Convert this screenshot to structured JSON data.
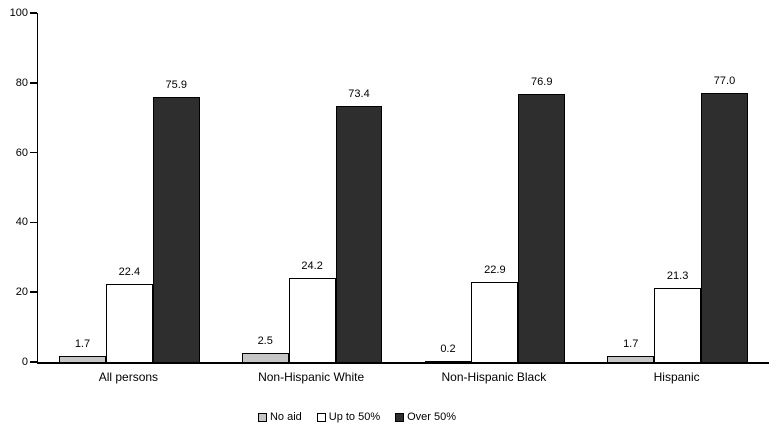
{
  "chart_data": {
    "type": "bar",
    "categories": [
      "All persons",
      "Non-Hispanic White",
      "Non-Hispanic Black",
      "Hispanic"
    ],
    "series": [
      {
        "name": "No aid",
        "color": "#c6c6c6",
        "values": [
          1.7,
          2.5,
          0.2,
          1.7
        ]
      },
      {
        "name": "Up to 50%",
        "color": "#ffffff",
        "values": [
          22.4,
          24.2,
          22.9,
          21.3
        ]
      },
      {
        "name": "Over 50%",
        "color": "#2e2e2e",
        "values": [
          75.9,
          73.4,
          76.9,
          77.0
        ]
      }
    ],
    "value_labels": [
      "1.7",
      "22.4",
      "75.9",
      "2.5",
      "24.2",
      "73.4",
      "0.2",
      "22.9",
      "76.9",
      "1.7",
      "21.3",
      "77.0"
    ],
    "y_ticks": [
      "0",
      "20",
      "40",
      "60",
      "80",
      "100"
    ],
    "ylim": [
      0,
      100
    ],
    "grid": false,
    "legend_position": "bottom",
    "value_label_decimals": 1
  },
  "colors": {
    "axis": "#000000",
    "background": "#ffffff",
    "text": "#000000"
  }
}
